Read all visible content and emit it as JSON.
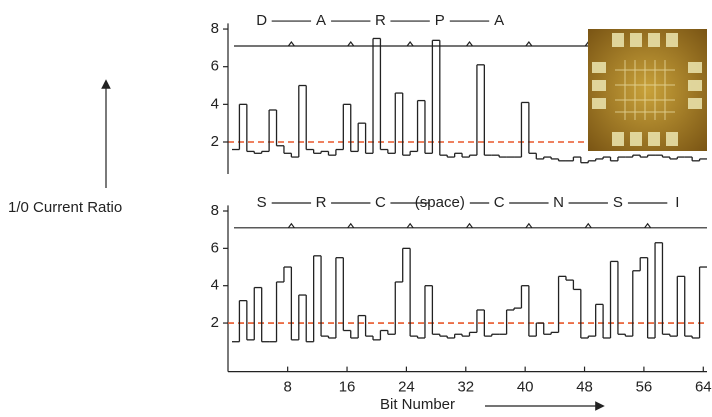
{
  "chart_data": [
    {
      "type": "step",
      "ylabel": "1/0 Current Ratio",
      "annotations": [
        "D",
        "A",
        "R",
        "P",
        "A"
      ],
      "x": [
        1,
        2,
        3,
        4,
        5,
        6,
        7,
        8,
        9,
        10,
        11,
        12,
        13,
        14,
        15,
        16,
        17,
        18,
        19,
        20,
        21,
        22,
        23,
        24,
        25,
        26,
        27,
        28,
        29,
        30,
        31,
        32,
        33,
        34,
        35,
        36,
        37,
        38,
        39,
        40,
        41,
        42,
        43,
        44,
        45,
        46,
        47,
        48,
        49,
        50,
        51,
        52,
        53,
        54,
        55,
        56,
        57,
        58,
        59,
        60,
        61,
        62,
        63,
        64
      ],
      "values": [
        1.6,
        4.0,
        1.5,
        1.4,
        1.5,
        3.7,
        1.8,
        1.4,
        1.2,
        5.0,
        1.6,
        1.4,
        1.5,
        1.3,
        1.6,
        4.0,
        1.5,
        3.0,
        1.4,
        7.5,
        1.6,
        1.4,
        4.6,
        1.3,
        1.5,
        4.2,
        1.4,
        7.4,
        1.3,
        1.2,
        1.4,
        1.2,
        1.3,
        6.1,
        1.3,
        1.3,
        1.2,
        1.2,
        1.2,
        4.1,
        1.4,
        1.1,
        1.2,
        1.1,
        1.0,
        1.0,
        1.2,
        0.9,
        1.0,
        1.1,
        1.2,
        1.0,
        1.2,
        1.2,
        1.3,
        1.2,
        1.3,
        1.3,
        1.2,
        1.1,
        1.2,
        1.2,
        1.0,
        1.1
      ],
      "color": "#222222",
      "threshold": 2,
      "threshold_color": "#e8572a",
      "xlim": [
        0.5,
        64.5
      ],
      "ylim": [
        0.3,
        8.3
      ],
      "yticks": [
        2,
        4,
        6,
        8
      ]
    },
    {
      "type": "step",
      "xlabel": "Bit Number",
      "annotations": [
        "S",
        "R",
        "C",
        "(space)",
        "C",
        "N",
        "S",
        "I"
      ],
      "x": [
        1,
        2,
        3,
        4,
        5,
        6,
        7,
        8,
        9,
        10,
        11,
        12,
        13,
        14,
        15,
        16,
        17,
        18,
        19,
        20,
        21,
        22,
        23,
        24,
        25,
        26,
        27,
        28,
        29,
        30,
        31,
        32,
        33,
        34,
        35,
        36,
        37,
        38,
        39,
        40,
        41,
        42,
        43,
        44,
        45,
        46,
        47,
        48,
        49,
        50,
        51,
        52,
        53,
        54,
        55,
        56,
        57,
        58,
        59,
        60,
        61,
        62,
        63,
        64
      ],
      "values": [
        1.0,
        3.2,
        1.1,
        3.9,
        1.0,
        1.0,
        4.2,
        5.0,
        1.1,
        3.5,
        1.0,
        5.6,
        1.3,
        1.2,
        5.5,
        1.6,
        1.2,
        2.4,
        1.3,
        1.1,
        1.6,
        1.4,
        4.2,
        6.0,
        1.3,
        1.2,
        4.0,
        1.4,
        1.3,
        1.2,
        1.4,
        1.3,
        1.5,
        2.7,
        1.3,
        1.4,
        1.4,
        2.7,
        2.8,
        4.0,
        1.3,
        2.0,
        1.4,
        1.5,
        4.5,
        4.3,
        3.8,
        1.2,
        1.3,
        3.0,
        1.2,
        5.3,
        1.4,
        1.3,
        4.8,
        5.5,
        1.2,
        6.3,
        1.4,
        1.3,
        4.5,
        1.3,
        1.2,
        5.0
      ],
      "color": "#222222",
      "threshold": 2,
      "threshold_color": "#e8572a",
      "xlim": [
        0.5,
        64.5
      ],
      "ylim": [
        -0.6,
        8.3
      ],
      "yticks": [
        2,
        4,
        6,
        8
      ],
      "xticks": [
        8,
        16,
        24,
        32,
        40,
        48,
        56,
        64
      ]
    }
  ]
}
